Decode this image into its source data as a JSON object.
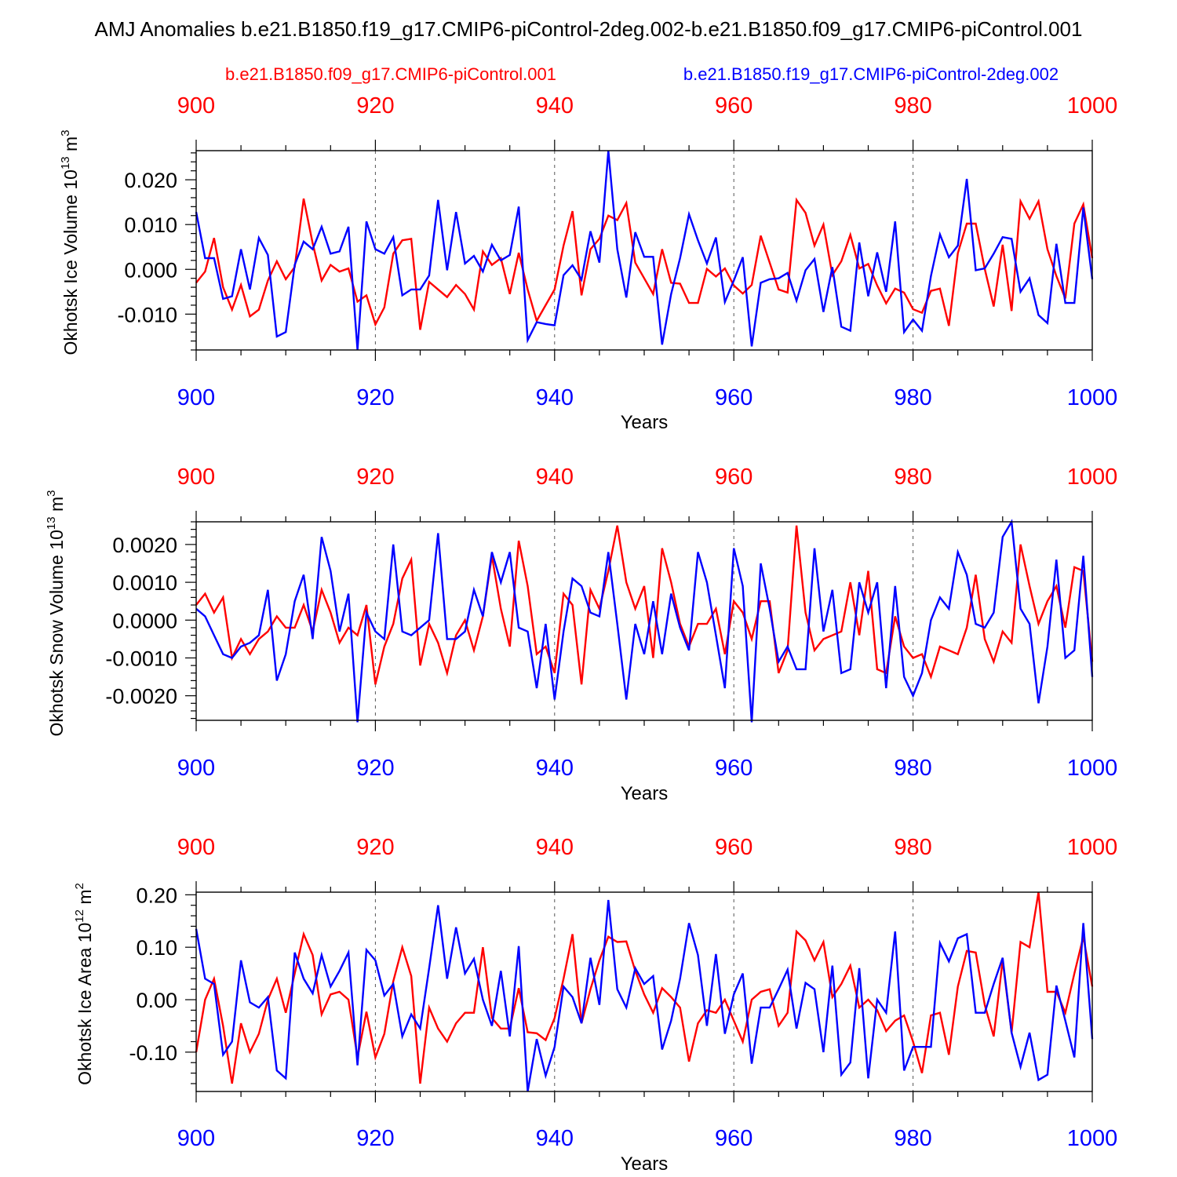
{
  "title": "AMJ Anomalies b.e21.B1850.f19_g17.CMIP6-piControl-2deg.002-b.e21.B1850.f09_g17.CMIP6-piControl.001",
  "legend": {
    "red_label": "b.e21.B1850.f09_g17.CMIP6-piControl.001",
    "blue_label": "b.e21.B1850.f19_g17.CMIP6-piControl-2deg.002"
  },
  "colors": {
    "red": "#ff0000",
    "blue": "#0000ff",
    "frame": "#000000"
  },
  "chart_data": [
    {
      "type": "line",
      "ylabel": "Okhotsk Ice Volume 10^13 m^3",
      "xlabel": "Years",
      "xlim": [
        900,
        1000
      ],
      "ylim": [
        -0.018,
        0.0265
      ],
      "xticks": [
        "900",
        "920",
        "940",
        "960",
        "980",
        "1000"
      ],
      "yticks": [
        "0.020",
        "0.010",
        "0.000",
        "-0.010"
      ],
      "grid": "dashed vertical at major x ticks",
      "series": [
        {
          "name": "b.e21.B1850.f09_g17.CMIP6-piControl.001",
          "color": "red",
          "x_start": 900,
          "values": [
            -0.003,
            -0.0005,
            0.007,
            -0.004,
            -0.009,
            -0.0035,
            -0.0105,
            -0.009,
            -0.0025,
            0.0018,
            -0.0022,
            0.0005,
            0.0158,
            0.0058,
            -0.0025,
            0.001,
            -0.0005,
            0.0002,
            -0.0072,
            -0.0058,
            -0.0123,
            -0.0085,
            0.0035,
            0.0065,
            0.0068,
            -0.0135,
            -0.0028,
            -0.0045,
            -0.0062,
            -0.0035,
            -0.0055,
            -0.009,
            0.004,
            0.001,
            0.0025,
            -0.0055,
            0.0037,
            -0.0045,
            -0.0115,
            -0.008,
            -0.0045,
            0.0053,
            0.013,
            -0.0058,
            0.0045,
            0.0068,
            0.012,
            0.011,
            0.0148,
            0.0015,
            -0.002,
            -0.0055,
            0.0045,
            -0.003,
            -0.0032,
            -0.0075,
            -0.0075,
            0.0001,
            -0.0016,
            0.0002,
            -0.0036,
            -0.0054,
            -0.0035,
            0.0075,
            0.0015,
            -0.0045,
            -0.0052,
            0.0155,
            0.0126,
            0.0053,
            0.01,
            -0.0013,
            0.0018,
            0.0077,
            0.0002,
            0.0012,
            -0.0036,
            -0.0076,
            -0.0043,
            -0.0052,
            -0.0089,
            -0.0097,
            -0.0048,
            -0.0043,
            -0.0126,
            0.0036,
            0.0102,
            0.0102,
            0.0001,
            -0.0083,
            0.0055,
            -0.0093,
            0.0152,
            0.0113,
            0.0152,
            0.0045,
            -0.0015,
            -0.0065,
            0.0102,
            0.0145,
            0.0025
          ]
        },
        {
          "name": "b.e21.B1850.f19_g17.CMIP6-piControl-2deg.002",
          "color": "blue",
          "x_start": 900,
          "values": [
            0.0128,
            0.0025,
            0.0025,
            -0.0066,
            -0.006,
            0.0045,
            -0.0045,
            0.007,
            0.0032,
            -0.015,
            -0.014,
            0.001,
            0.0062,
            0.0045,
            0.0095,
            0.0035,
            0.004,
            0.0095,
            -0.018,
            0.0107,
            0.0045,
            0.0035,
            0.0072,
            -0.0058,
            -0.0045,
            -0.0045,
            -0.0014,
            0.0155,
            -0.0002,
            0.0128,
            0.0013,
            0.003,
            -0.0005,
            0.0055,
            0.002,
            0.0032,
            0.014,
            -0.0158,
            -0.0118,
            -0.0122,
            -0.0125,
            -0.0013,
            0.0009,
            -0.0023,
            0.0085,
            0.0015,
            0.0265,
            0.0045,
            -0.0063,
            0.0083,
            0.0028,
            0.0028,
            -0.0168,
            -0.0055,
            0.0025,
            0.0123,
            0.0065,
            0.0013,
            0.0071,
            -0.0073,
            -0.0025,
            0.0027,
            -0.0172,
            -0.003,
            -0.0022,
            -0.002,
            -0.0008,
            -0.007,
            -0.0002,
            0.0023,
            -0.0095,
            0.0005,
            -0.0128,
            -0.0137,
            0.006,
            -0.006,
            0.0038,
            -0.005,
            0.0107,
            -0.014,
            -0.0112,
            -0.0137,
            -0.0015,
            0.0078,
            0.0027,
            0.0053,
            0.0202,
            -0.0002,
            0.0002,
            0.0035,
            0.0072,
            0.0068,
            -0.005,
            -0.002,
            -0.0102,
            -0.012,
            0.0057,
            -0.0075,
            -0.0075,
            0.0138,
            -0.0022
          ]
        }
      ]
    },
    {
      "type": "line",
      "ylabel": "Okhotsk Snow Volume 10^13 m^3",
      "xlabel": "Years",
      "xlim": [
        900,
        1000
      ],
      "ylim": [
        -0.00265,
        0.0026
      ],
      "xticks": [
        "900",
        "920",
        "940",
        "960",
        "980",
        "1000"
      ],
      "yticks": [
        "0.0020",
        "0.0010",
        "0.0000",
        "-0.0010",
        "-0.0020"
      ],
      "grid": "dashed vertical at major x ticks",
      "series": [
        {
          "name": "b.e21.B1850.f09_g17.CMIP6-piControl.001",
          "color": "red",
          "x_start": 900,
          "values": [
            0.0004,
            0.0007,
            0.0002,
            0.0006,
            -0.001,
            -0.0005,
            -0.0009,
            -0.0005,
            -0.0003,
            0.0001,
            -0.0002,
            -0.0002,
            0.0004,
            -0.0003,
            0.0008,
            0.0002,
            -0.0006,
            -0.0002,
            -0.0004,
            0.0004,
            -0.0017,
            -0.0007,
            -0.0001,
            0.0011,
            0.0016,
            -0.0012,
            -0.0001,
            -0.0006,
            -0.0014,
            -0.0004,
            0.0,
            -0.0008,
            0.0001,
            0.0017,
            0.0003,
            -0.0007,
            0.0021,
            0.0009,
            -0.0009,
            -0.0007,
            -0.0014,
            0.0007,
            0.0004,
            -0.0017,
            0.0008,
            0.0003,
            0.0013,
            0.0025,
            0.001,
            0.0003,
            0.0009,
            -0.001,
            0.0019,
            0.001,
            -0.0001,
            -0.0007,
            -0.0001,
            -0.0001,
            0.0003,
            -0.0009,
            0.0005,
            0.0002,
            -0.0005,
            0.0005,
            0.0005,
            -0.0014,
            -0.0008,
            0.0025,
            0.0002,
            -0.0008,
            -0.0005,
            -0.0004,
            -0.0003,
            0.001,
            -0.0004,
            0.0013,
            -0.0013,
            -0.0014,
            0.0001,
            -0.0007,
            -0.001,
            -0.0009,
            -0.0015,
            -0.0007,
            -0.0008,
            -0.0009,
            -0.0002,
            0.0012,
            -0.0005,
            -0.0011,
            -0.0003,
            -0.0006,
            0.002,
            0.0009,
            -0.0001,
            0.0005,
            0.0009,
            -0.0002,
            0.0014,
            0.0013,
            -0.0011
          ]
        },
        {
          "name": "b.e21.B1850.f19_g17.CMIP6-piControl-2deg.002",
          "color": "blue",
          "x_start": 900,
          "values": [
            0.0003,
            0.0001,
            -0.0004,
            -0.0009,
            -0.001,
            -0.0007,
            -0.0006,
            -0.0004,
            0.0008,
            -0.0016,
            -0.0009,
            0.0005,
            0.0012,
            -0.0005,
            0.0022,
            0.0013,
            -0.0003,
            0.0007,
            -0.0027,
            0.0002,
            -0.0003,
            -0.0005,
            0.002,
            -0.0003,
            -0.0004,
            -0.0002,
            0.0,
            0.0023,
            -0.0005,
            -0.0005,
            -0.0003,
            0.0008,
            0.0001,
            0.0018,
            0.001,
            0.0018,
            -0.0002,
            -0.0003,
            -0.0018,
            -0.0001,
            -0.0021,
            -0.0003,
            0.0011,
            0.0009,
            0.0002,
            0.0001,
            0.0018,
            -0.0001,
            -0.0021,
            -0.0001,
            -0.0009,
            0.0005,
            -0.0009,
            0.0007,
            -0.0002,
            -0.0008,
            0.0018,
            0.001,
            -0.0004,
            -0.0018,
            0.0019,
            0.0009,
            -0.0027,
            0.0015,
            0.0003,
            -0.0011,
            -0.0007,
            -0.0013,
            -0.0013,
            0.0019,
            -0.0003,
            0.0008,
            -0.0014,
            -0.0013,
            0.001,
            0.0002,
            0.001,
            -0.0018,
            0.0009,
            -0.0015,
            -0.002,
            -0.0014,
            0.0,
            0.0006,
            0.0003,
            0.0018,
            0.0012,
            -0.0001,
            -0.0002,
            0.0002,
            0.0022,
            0.0026,
            0.0003,
            -0.0001,
            -0.0022,
            -0.0007,
            0.0016,
            -0.001,
            -0.0008,
            0.0017,
            -0.0015
          ]
        }
      ]
    },
    {
      "type": "line",
      "ylabel": "Okhotsk Ice Area 10^12 m^2",
      "xlabel": "Years",
      "xlim": [
        900,
        1000
      ],
      "ylim": [
        -0.175,
        0.205
      ],
      "xticks": [
        "900",
        "920",
        "940",
        "960",
        "980",
        "1000"
      ],
      "yticks": [
        "0.20",
        "0.10",
        "0.00",
        "-0.10"
      ],
      "grid": "dashed vertical at major x ticks",
      "series": [
        {
          "name": "b.e21.B1850.f09_g17.CMIP6-piControl.001",
          "color": "red",
          "x_start": 900,
          "values": [
            -0.1,
            0.0,
            0.04,
            -0.05,
            -0.16,
            -0.045,
            -0.1,
            -0.065,
            0.0,
            0.04,
            -0.025,
            0.05,
            0.125,
            0.085,
            -0.028,
            0.01,
            0.015,
            0.0,
            -0.11,
            -0.023,
            -0.11,
            -0.065,
            0.035,
            0.1,
            0.045,
            -0.16,
            -0.015,
            -0.055,
            -0.08,
            -0.045,
            -0.025,
            -0.025,
            0.1,
            -0.035,
            -0.055,
            -0.055,
            0.022,
            -0.062,
            -0.064,
            -0.077,
            -0.035,
            0.04,
            0.125,
            -0.045,
            0.02,
            0.075,
            0.12,
            0.11,
            0.111,
            0.055,
            0.01,
            -0.025,
            0.022,
            0.005,
            -0.015,
            -0.118,
            -0.045,
            -0.02,
            -0.025,
            0.0,
            -0.04,
            -0.08,
            0.0,
            0.015,
            0.02,
            -0.05,
            -0.025,
            0.13,
            0.113,
            0.075,
            0.11,
            0.005,
            0.03,
            0.065,
            -0.015,
            0.0,
            -0.02,
            -0.06,
            -0.04,
            -0.03,
            -0.08,
            -0.14,
            -0.03,
            -0.025,
            -0.105,
            0.025,
            0.093,
            0.09,
            -0.01,
            -0.07,
            0.075,
            -0.063,
            0.11,
            0.1,
            0.205,
            0.015,
            0.015,
            -0.025,
            0.05,
            0.12,
            0.025
          ]
        },
        {
          "name": "b.e21.B1850.f19_g17.CMIP6-piControl-2deg.002",
          "color": "blue",
          "x_start": 900,
          "values": [
            0.135,
            0.04,
            0.03,
            -0.105,
            -0.08,
            0.075,
            -0.005,
            -0.015,
            0.005,
            -0.135,
            -0.15,
            0.09,
            0.04,
            0.012,
            0.085,
            0.025,
            0.055,
            0.09,
            -0.125,
            0.095,
            0.075,
            0.008,
            0.03,
            -0.07,
            -0.028,
            -0.055,
            0.06,
            0.18,
            0.04,
            0.138,
            0.05,
            0.078,
            0.0,
            -0.05,
            0.055,
            -0.07,
            0.102,
            -0.175,
            -0.075,
            -0.145,
            -0.09,
            0.025,
            0.005,
            -0.045,
            0.08,
            -0.01,
            0.19,
            0.02,
            -0.015,
            0.06,
            0.03,
            0.045,
            -0.095,
            -0.04,
            0.04,
            0.146,
            0.085,
            -0.05,
            0.087,
            -0.065,
            0.01,
            0.05,
            -0.122,
            -0.015,
            -0.015,
            0.02,
            0.057,
            -0.055,
            0.032,
            0.02,
            -0.1,
            0.065,
            -0.143,
            -0.12,
            0.06,
            -0.15,
            0.0,
            -0.025,
            0.13,
            -0.135,
            -0.09,
            -0.09,
            -0.09,
            0.108,
            0.073,
            0.117,
            0.125,
            -0.025,
            -0.025,
            0.03,
            0.08,
            -0.063,
            -0.128,
            -0.063,
            -0.153,
            -0.143,
            0.027,
            -0.04,
            -0.11,
            0.146,
            -0.075
          ]
        }
      ]
    }
  ]
}
